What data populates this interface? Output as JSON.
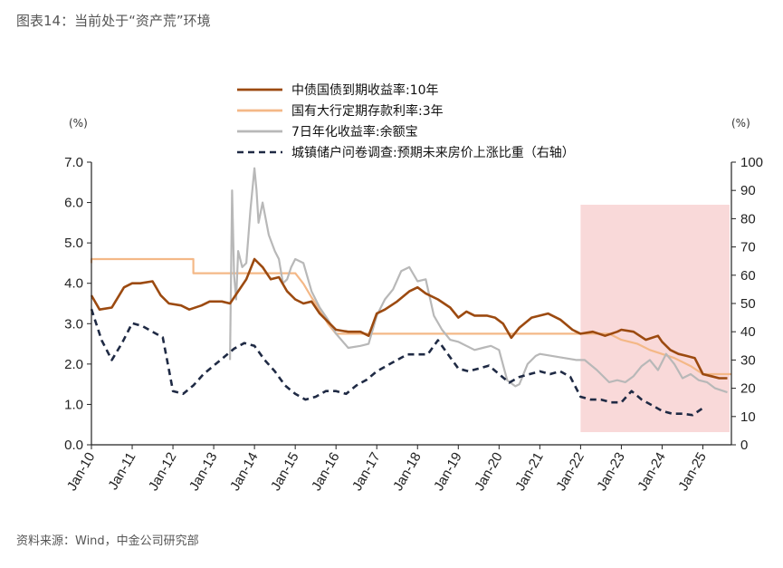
{
  "figure_title": "图表14：当前处于“资产荒”环境",
  "source": "资料来源：Wind，中金公司研究部",
  "chart_data": {
    "type": "line",
    "left_unit": "(%)",
    "right_unit": "(%)",
    "ylim_left": [
      0,
      7
    ],
    "ylim_right": [
      0,
      100
    ],
    "yticks_left": [
      "0.0",
      "1.0",
      "2.0",
      "3.0",
      "4.0",
      "5.0",
      "6.0",
      "7.0"
    ],
    "yticks_right": [
      "0",
      "10",
      "20",
      "30",
      "40",
      "50",
      "60",
      "70",
      "80",
      "90",
      "100"
    ],
    "xticks": [
      "Jan-10",
      "Jan-11",
      "Jan-12",
      "Jan-13",
      "Jan-14",
      "Jan-15",
      "Jan-16",
      "Jan-17",
      "Jan-18",
      "Jan-19",
      "Jan-20",
      "Jan-21",
      "Jan-22",
      "Jan-23",
      "Jan-24",
      "Jan-25"
    ],
    "xlim": [
      2010.0,
      2025.7
    ],
    "grid": false,
    "legend_position": "top",
    "shaded_region": {
      "x_start": 2022.0,
      "x_end": 2025.7,
      "color": "#f9d9d9"
    },
    "series": [
      {
        "name": "中债国债到期收益率:10年",
        "axis": "left",
        "color": "#9c4a10",
        "style": "solid",
        "x": [
          2010.0,
          2010.2,
          2010.5,
          2010.8,
          2011.0,
          2011.2,
          2011.5,
          2011.7,
          2011.9,
          2012.2,
          2012.4,
          2012.7,
          2012.9,
          2013.2,
          2013.4,
          2013.6,
          2013.8,
          2014.0,
          2014.2,
          2014.4,
          2014.6,
          2014.8,
          2015.0,
          2015.2,
          2015.4,
          2015.6,
          2015.8,
          2016.0,
          2016.3,
          2016.6,
          2016.8,
          2017.0,
          2017.2,
          2017.5,
          2017.8,
          2018.0,
          2018.2,
          2018.5,
          2018.8,
          2019.0,
          2019.2,
          2019.4,
          2019.7,
          2019.9,
          2020.1,
          2020.3,
          2020.5,
          2020.8,
          2021.0,
          2021.2,
          2021.5,
          2021.8,
          2022.0,
          2022.3,
          2022.6,
          2022.9,
          2023.0,
          2023.3,
          2023.6,
          2023.9,
          2024.0,
          2024.2,
          2024.4,
          2024.6,
          2024.8,
          2025.0,
          2025.2,
          2025.4,
          2025.6
        ],
        "y": [
          3.7,
          3.35,
          3.4,
          3.9,
          4.0,
          4.0,
          4.05,
          3.7,
          3.5,
          3.45,
          3.35,
          3.45,
          3.55,
          3.55,
          3.5,
          3.8,
          4.1,
          4.6,
          4.4,
          4.1,
          4.15,
          3.8,
          3.6,
          3.5,
          3.55,
          3.25,
          3.05,
          2.85,
          2.8,
          2.8,
          2.7,
          3.25,
          3.35,
          3.55,
          3.8,
          3.9,
          3.75,
          3.6,
          3.4,
          3.15,
          3.3,
          3.2,
          3.2,
          3.15,
          3.0,
          2.65,
          2.9,
          3.15,
          3.2,
          3.25,
          3.1,
          2.85,
          2.75,
          2.8,
          2.7,
          2.8,
          2.85,
          2.8,
          2.6,
          2.7,
          2.55,
          2.35,
          2.25,
          2.2,
          2.15,
          1.75,
          1.7,
          1.65,
          1.65
        ]
      },
      {
        "name": "国有大行定期存款利率:3年",
        "axis": "left",
        "color": "#f4b887",
        "style": "step",
        "x": [
          2010.0,
          2010.0,
          2012.5,
          2012.5,
          2015.0,
          2015.2,
          2015.4,
          2015.6,
          2015.8,
          2016.0,
          2022.7,
          2023.0,
          2023.4,
          2023.7,
          2024.3,
          2024.7,
          2025.0,
          2025.7
        ],
        "y": [
          4.5,
          4.6,
          4.6,
          4.25,
          4.25,
          3.99,
          3.65,
          3.35,
          3.0,
          2.75,
          2.75,
          2.6,
          2.5,
          2.35,
          2.15,
          1.95,
          1.75,
          1.75
        ]
      },
      {
        "name": "7日年化收益率:余额宝",
        "axis": "left",
        "color": "#b8b8b8",
        "style": "solid",
        "x": [
          2013.4,
          2013.45,
          2013.5,
          2013.55,
          2013.6,
          2013.7,
          2013.8,
          2013.9,
          2014.0,
          2014.05,
          2014.1,
          2014.2,
          2014.35,
          2014.5,
          2014.6,
          2014.7,
          2014.8,
          2014.9,
          2015.0,
          2015.2,
          2015.4,
          2015.6,
          2015.8,
          2016.0,
          2016.3,
          2016.6,
          2016.8,
          2017.0,
          2017.2,
          2017.4,
          2017.6,
          2017.8,
          2018.0,
          2018.2,
          2018.4,
          2018.6,
          2018.8,
          2019.0,
          2019.2,
          2019.4,
          2019.6,
          2019.8,
          2020.0,
          2020.2,
          2020.4,
          2020.5,
          2020.7,
          2020.9,
          2021.0,
          2021.3,
          2021.6,
          2021.9,
          2022.1,
          2022.4,
          2022.7,
          2022.9,
          2023.1,
          2023.3,
          2023.5,
          2023.7,
          2023.9,
          2024.1,
          2024.3,
          2024.5,
          2024.7,
          2024.9,
          2025.1,
          2025.3,
          2025.6
        ],
        "y": [
          2.1,
          6.3,
          4.2,
          3.6,
          4.8,
          4.4,
          4.5,
          5.8,
          6.85,
          6.3,
          5.5,
          6.0,
          5.2,
          4.8,
          4.6,
          4.0,
          4.1,
          4.4,
          4.6,
          4.5,
          3.8,
          3.4,
          3.1,
          2.75,
          2.4,
          2.45,
          2.5,
          3.2,
          3.6,
          3.85,
          4.3,
          4.4,
          4.05,
          4.1,
          3.2,
          2.85,
          2.6,
          2.55,
          2.45,
          2.35,
          2.4,
          2.45,
          2.35,
          1.6,
          1.45,
          1.5,
          2.0,
          2.2,
          2.25,
          2.2,
          2.15,
          2.1,
          2.1,
          1.85,
          1.55,
          1.6,
          1.55,
          1.7,
          1.95,
          2.1,
          1.85,
          2.25,
          2.0,
          1.65,
          1.75,
          1.6,
          1.55,
          1.4,
          1.3
        ]
      },
      {
        "name": "城镇储户问卷调查:预期未来房价上涨比重（右轴）",
        "axis": "right",
        "color": "#1f2a44",
        "style": "dashed",
        "x": [
          2010.0,
          2010.25,
          2010.5,
          2010.75,
          2011.0,
          2011.25,
          2011.5,
          2011.75,
          2012.0,
          2012.25,
          2012.5,
          2012.75,
          2013.0,
          2013.25,
          2013.5,
          2013.75,
          2014.0,
          2014.25,
          2014.5,
          2014.75,
          2015.0,
          2015.25,
          2015.5,
          2015.75,
          2016.0,
          2016.25,
          2016.5,
          2016.75,
          2017.0,
          2017.25,
          2017.5,
          2017.75,
          2018.0,
          2018.25,
          2018.5,
          2018.75,
          2019.0,
          2019.25,
          2019.5,
          2019.75,
          2020.0,
          2020.25,
          2020.5,
          2020.75,
          2021.0,
          2021.25,
          2021.5,
          2021.75,
          2022.0,
          2022.25,
          2022.5,
          2022.75,
          2023.0,
          2023.25,
          2023.5,
          2023.75,
          2024.0,
          2024.25,
          2024.5,
          2024.75,
          2025.0
        ],
        "y": [
          48,
          37,
          30,
          36,
          43,
          42,
          40,
          38,
          19,
          18,
          21,
          25,
          28,
          31,
          34,
          36,
          35,
          30,
          26,
          21,
          18,
          16,
          17,
          19,
          19,
          18,
          21,
          23,
          26,
          28,
          30,
          32,
          32,
          32,
          37,
          32,
          27,
          26,
          27,
          28,
          25,
          22,
          24,
          25,
          26,
          25,
          26,
          24,
          17,
          16,
          16,
          15,
          15,
          19,
          16,
          14,
          12,
          11,
          11,
          10.5,
          13
        ]
      }
    ]
  }
}
